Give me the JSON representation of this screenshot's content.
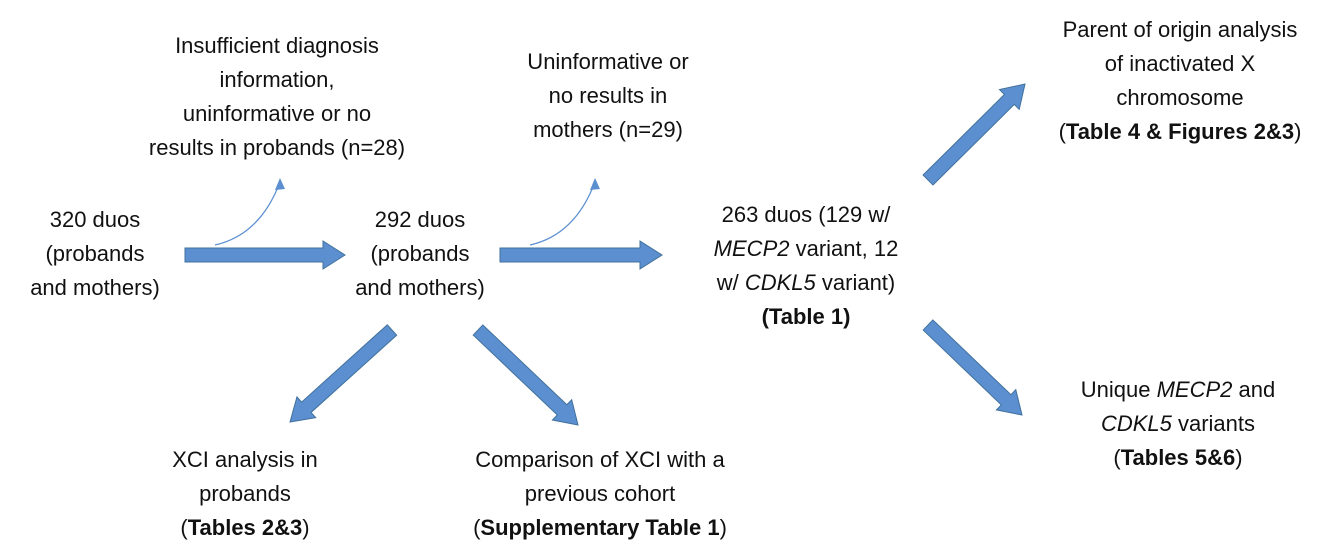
{
  "nodes": [
    {
      "lines": [
        [
          "320 duos"
        ],
        [
          "(probands"
        ],
        [
          "and mothers)"
        ]
      ]
    },
    {
      "lines": [
        [
          "Insufficient diagnosis"
        ],
        [
          "information,"
        ],
        [
          "uninformative or no"
        ],
        [
          "results in probands (n=28)"
        ]
      ]
    },
    {
      "lines": [
        [
          "292 duos"
        ],
        [
          "(probands"
        ],
        [
          "and mothers)"
        ]
      ]
    },
    {
      "lines": [
        [
          "Uninformative or"
        ],
        [
          "no results in"
        ],
        [
          "mothers (n=29)"
        ]
      ]
    },
    {
      "lines": [
        [
          "263 duos (129 w/"
        ],
        [
          "MECP2",
          " variant, 12"
        ],
        [
          "w/ ",
          "CDKL5",
          " variant)"
        ],
        [
          "(Table 1)"
        ]
      ]
    },
    {
      "lines": [
        [
          "Parent of origin analysis"
        ],
        [
          "of inactivated X"
        ],
        [
          "chromosome"
        ],
        [
          "(",
          "Table 4 & Figures 2&3",
          ")"
        ]
      ]
    },
    {
      "lines": [
        [
          "Unique ",
          "MECP2",
          " and"
        ],
        [
          "CDKL5",
          " variants"
        ],
        [
          "(",
          "Tables 5&6",
          ")"
        ]
      ]
    },
    {
      "lines": [
        [
          "XCI analysis in"
        ],
        [
          "probands"
        ],
        [
          "(",
          "Tables 2&3",
          ")"
        ]
      ]
    },
    {
      "lines": [
        [
          "Comparison of XCI with a"
        ],
        [
          "previous cohort"
        ],
        [
          "(",
          "Supplementary Table 1",
          ")"
        ]
      ]
    }
  ]
}
